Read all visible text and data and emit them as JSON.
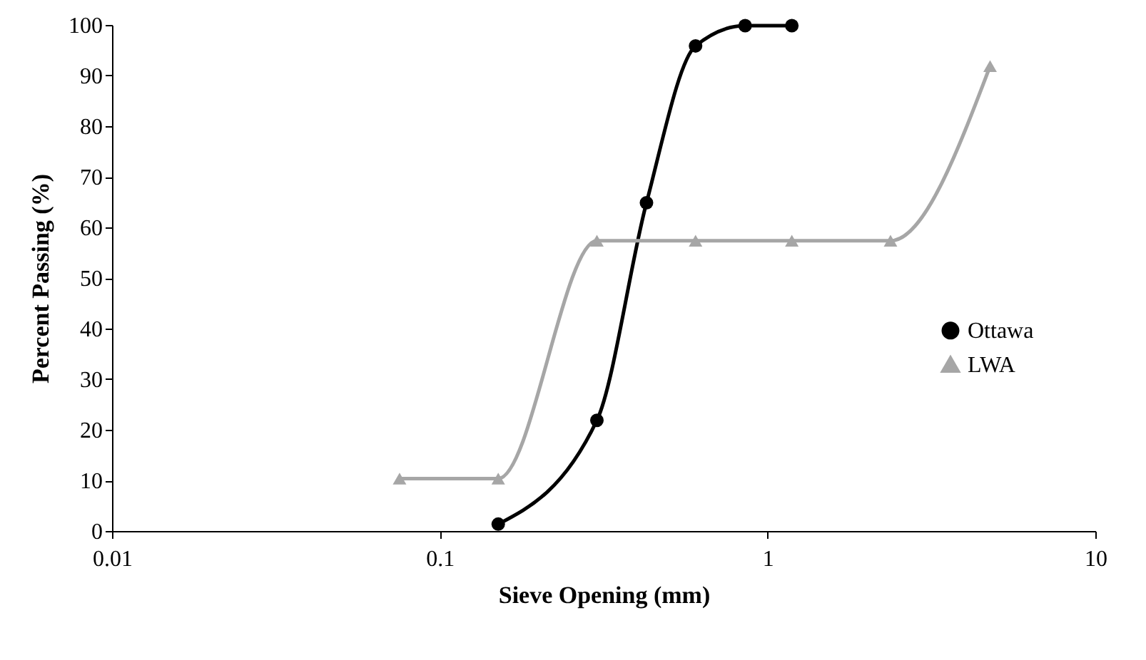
{
  "chart_data": {
    "type": "line",
    "xlabel": "Sieve Opening (mm)",
    "ylabel": "Percent Passing (%)",
    "log": "x",
    "xlim": [
      0.01,
      10
    ],
    "xticks": [
      0.01,
      0.1,
      1,
      10
    ],
    "ylim": [
      0,
      100
    ],
    "yticks": [
      0,
      10,
      20,
      30,
      40,
      50,
      60,
      70,
      80,
      90,
      100
    ],
    "grid": false,
    "legend": "right",
    "series": [
      {
        "name": "Ottawa",
        "color": "#000000",
        "marker": "circle",
        "x": [
          0.15,
          0.3,
          0.425,
          0.6,
          0.85,
          1.18
        ],
        "values": [
          1.5,
          22,
          65,
          96,
          100,
          100
        ]
      },
      {
        "name": "LWA",
        "color": "#a6a6a6",
        "marker": "triangle",
        "x": [
          0.075,
          0.15,
          0.3,
          0.6,
          1.18,
          2.36,
          4.75
        ],
        "values": [
          10.5,
          10.5,
          57.5,
          57.5,
          57.5,
          57.5,
          92
        ]
      }
    ]
  }
}
